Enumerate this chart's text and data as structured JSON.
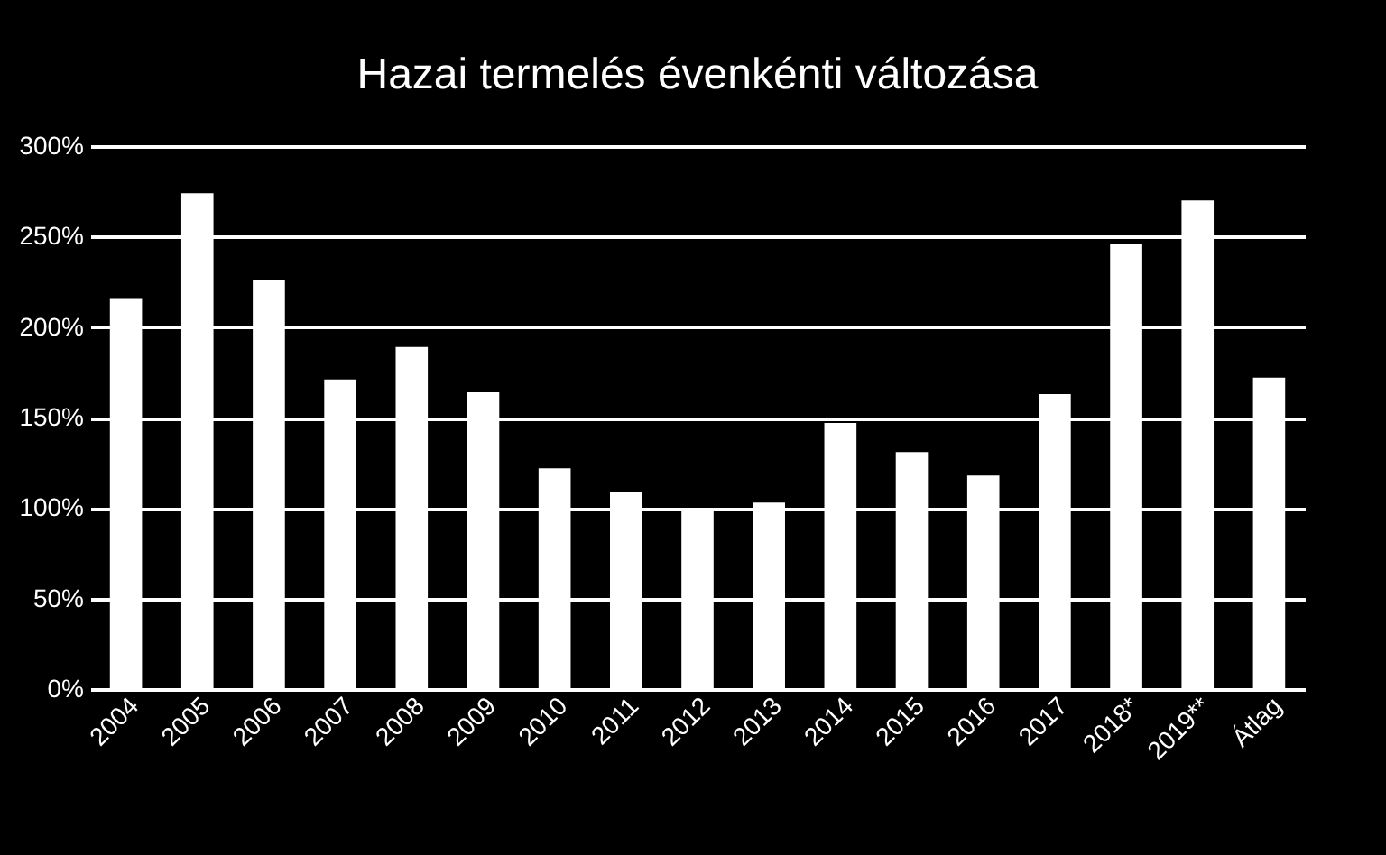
{
  "chart_data": {
    "type": "bar",
    "title": "Hazai termelés évenkénti változása",
    "categories": [
      "2004",
      "2005",
      "2006",
      "2007",
      "2008",
      "2009",
      "2010",
      "2011",
      "2012",
      "2013",
      "2014",
      "2015",
      "2016",
      "2017",
      "2018*",
      "2019**",
      "Átlag"
    ],
    "values": [
      216,
      274,
      226,
      171,
      189,
      164,
      122,
      109,
      100,
      103,
      147,
      131,
      118,
      163,
      246,
      270,
      172
    ],
    "color": "#ffffff",
    "ylim": [
      0,
      300
    ],
    "yticks": [
      {
        "value": 0,
        "label": "0%"
      },
      {
        "value": 50,
        "label": "50%"
      },
      {
        "value": 100,
        "label": "100%"
      },
      {
        "value": 150,
        "label": "150%"
      },
      {
        "value": 200,
        "label": "200%"
      },
      {
        "value": 250,
        "label": "250%"
      },
      {
        "value": 300,
        "label": "300%"
      }
    ],
    "grid": "y"
  }
}
